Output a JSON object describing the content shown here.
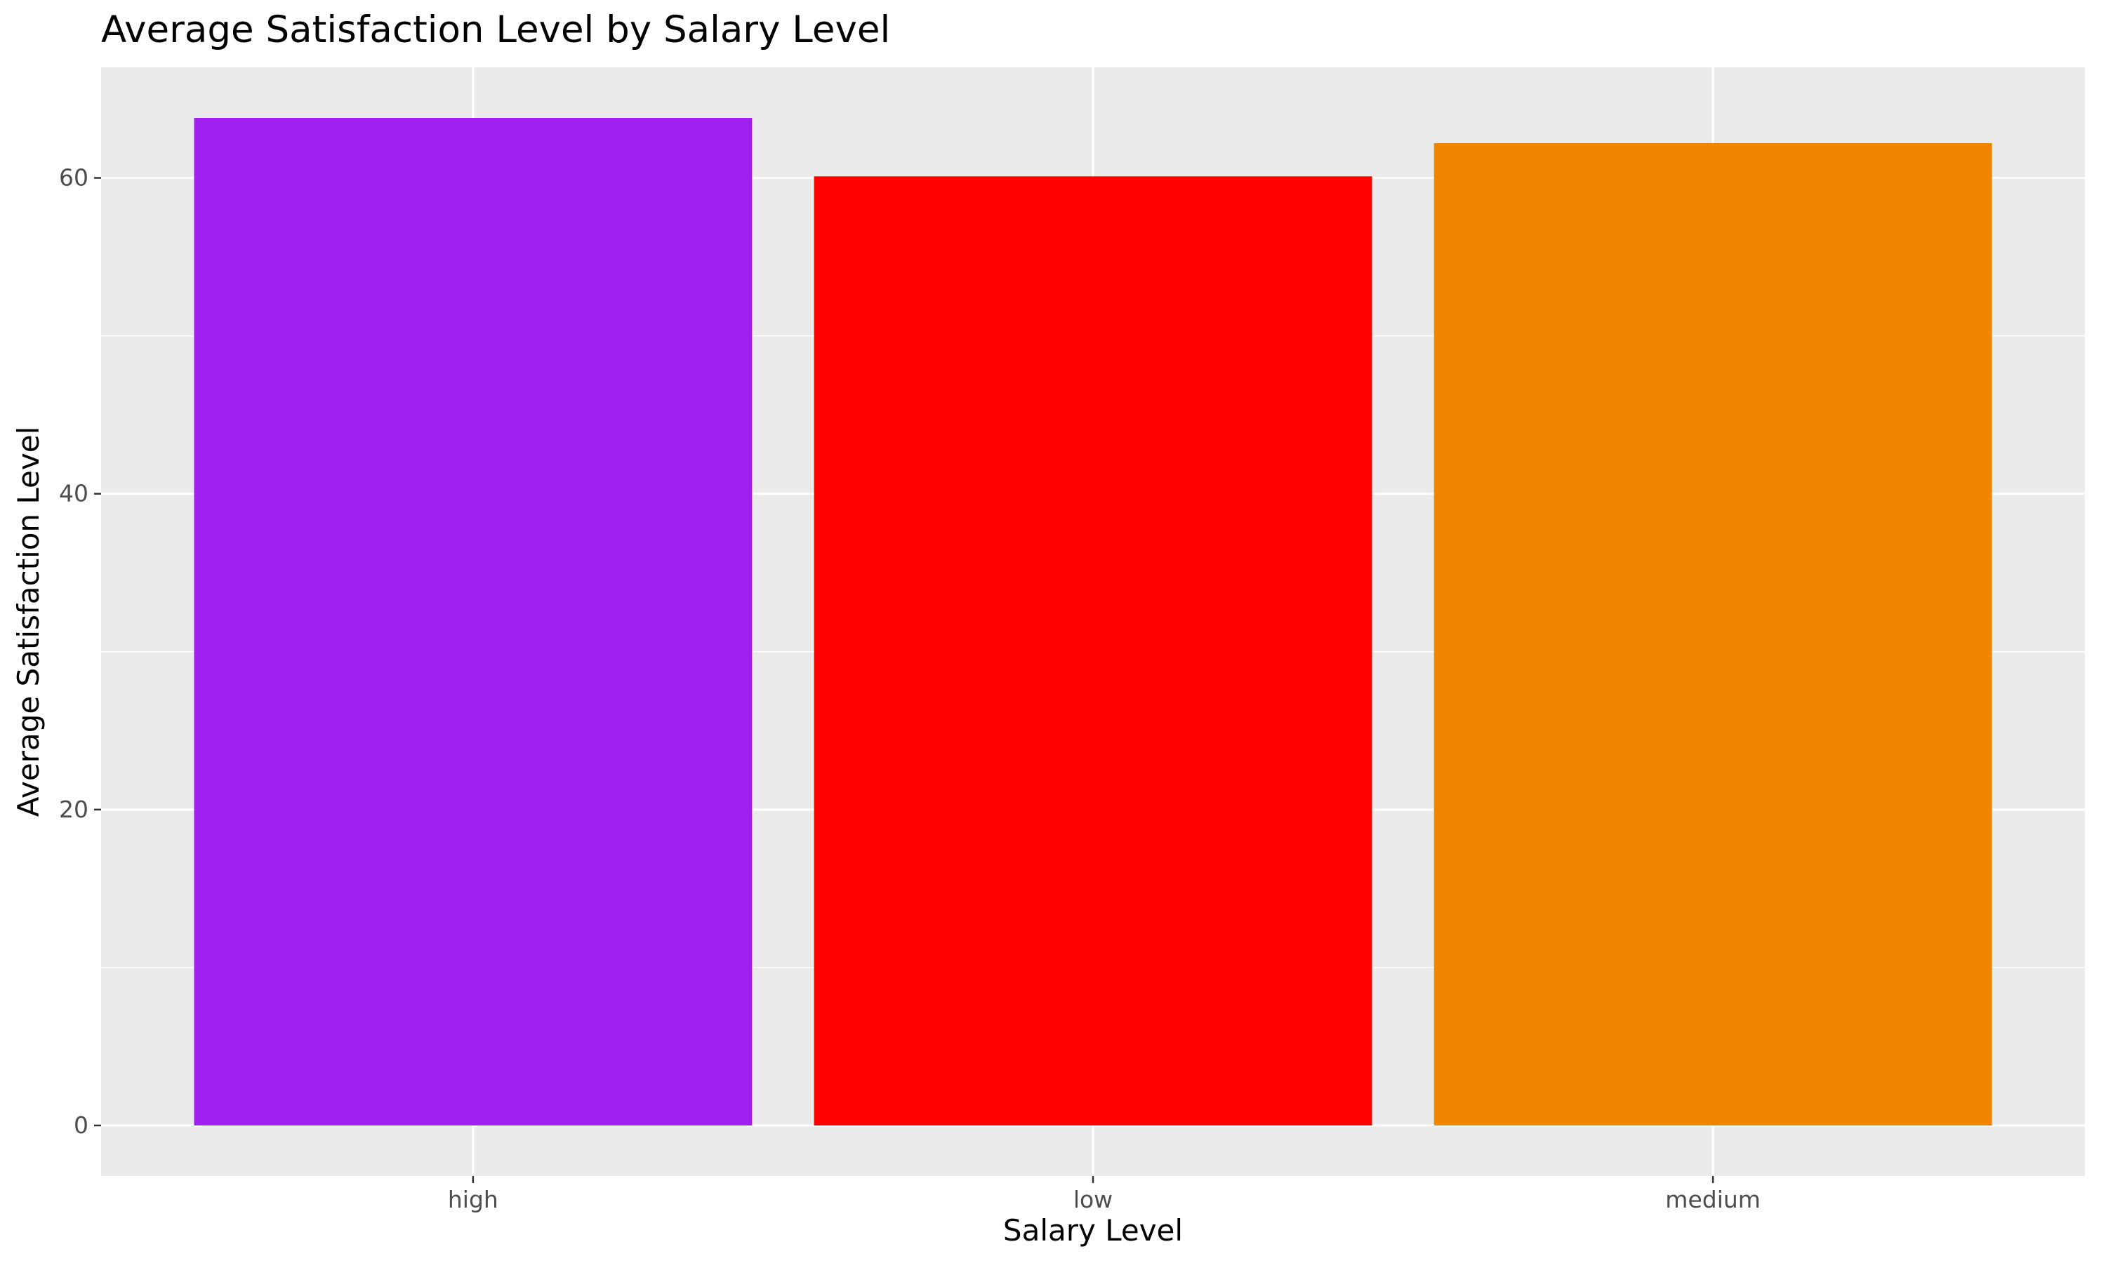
{
  "chart_data": {
    "type": "bar",
    "title": "Average Satisfaction Level by Salary Level",
    "xlabel": "Salary Level",
    "ylabel": "Average Satisfaction Level",
    "categories": [
      "high",
      "low",
      "medium"
    ],
    "values": [
      63.8,
      60.1,
      62.2
    ],
    "bar_colors": [
      "#A020F0",
      "#FF0000",
      "#F08500"
    ],
    "ylim": [
      -3.2,
      67
    ],
    "yticks": [
      0,
      20,
      40,
      60
    ],
    "grid": true,
    "legend": "none",
    "panel_background": "#EBEBEB",
    "gridline_color": "#FFFFFF"
  }
}
